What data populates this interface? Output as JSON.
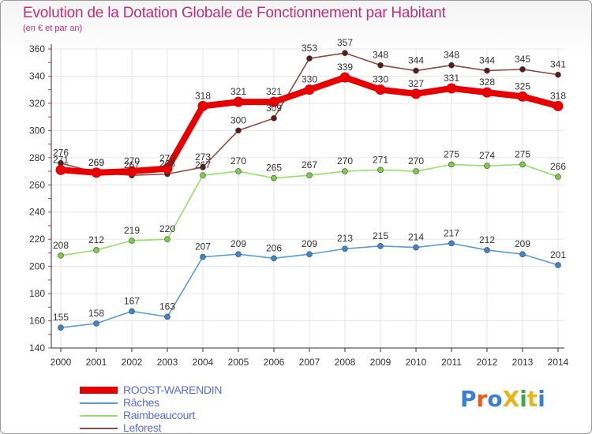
{
  "title": "Evolution de la Dotation Globale de Fonctionnement par Habitant",
  "subtitle": "(en € et par an)",
  "logo_text": "ProXiti",
  "colors": {
    "title": "#c0307a",
    "legend_text": "#5a6be8",
    "axis": "#333333",
    "grid": "#e6e6e6"
  },
  "chart_data": {
    "type": "line",
    "x": [
      "2000",
      "2001",
      "2002",
      "2003",
      "2004",
      "2005",
      "2006",
      "2007",
      "2008",
      "2009",
      "2010",
      "2011",
      "2012",
      "2013",
      "2014"
    ],
    "ylim": [
      140,
      360
    ],
    "yticks": [
      140,
      160,
      180,
      200,
      220,
      240,
      260,
      280,
      300,
      320,
      340,
      360
    ],
    "grid": true,
    "legend_position": "bottom-left",
    "series": [
      {
        "name": "ROOST-WARENDIN",
        "color": "#e60000",
        "marker": "#e60000",
        "values": [
          271,
          269,
          270,
          272,
          318,
          321,
          321,
          330,
          339,
          330,
          327,
          331,
          328,
          325,
          318
        ]
      },
      {
        "name": "Râches",
        "color": "#5a9bd5",
        "marker": "#3f86c8",
        "values": [
          155,
          158,
          167,
          163,
          207,
          209,
          206,
          209,
          213,
          215,
          214,
          217,
          212,
          209,
          201
        ]
      },
      {
        "name": "Raimbeaucourt",
        "color": "#9bdc6e",
        "marker": "#7ccc4a",
        "values": [
          208,
          212,
          219,
          220,
          267,
          270,
          265,
          267,
          270,
          271,
          270,
          275,
          274,
          275,
          266
        ]
      },
      {
        "name": "Leforest",
        "color": "#8c4a4a",
        "marker": "#5e1a1a",
        "values": [
          276,
          269,
          267,
          268,
          273,
          300,
          309,
          353,
          357,
          348,
          344,
          348,
          344,
          345,
          341
        ]
      }
    ]
  }
}
